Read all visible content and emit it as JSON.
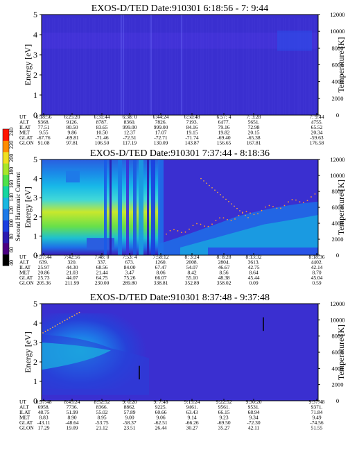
{
  "colorbar": {
    "label": "Second Harmonic Current",
    "ticks": [
      "40",
      "60",
      "80",
      "100",
      "120",
      "140",
      "160",
      "180",
      "200",
      "220",
      "240"
    ],
    "colors": [
      "#000000",
      "#4b0082",
      "#2a1bb0",
      "#1a3fe0",
      "#1e7ae8",
      "#19b7e0",
      "#16d6a0",
      "#4fe24a",
      "#a8e62a",
      "#f0e020",
      "#ff8c00",
      "#ff1500"
    ]
  },
  "row_labels": [
    "UT",
    "ALT",
    "ILAT",
    "MLT",
    "GLAT",
    "GLON"
  ],
  "chart_data": [
    {
      "type": "heatmap",
      "title": "EXOS-D/TED   Date:910301   6:18:56 - 7: 9:44",
      "ylabel": "Energy [eV]",
      "y2label": "Temperature [K]",
      "ylim": [
        0,
        5
      ],
      "y2lim": [
        0,
        12000
      ],
      "yticks": [
        "0",
        "1",
        "2",
        "3",
        "4",
        "5"
      ],
      "y2ticks": [
        "0",
        "2000",
        "4000",
        "6000",
        "8000",
        "10000",
        "12000"
      ],
      "background": "#3a2fd0",
      "columns": [
        {
          "UT": "6:18:56",
          "ALT": "9368.",
          "ILAT": "77.51",
          "MLT": "9.55",
          "GLAT": "-67.76",
          "GLON": "91.08"
        },
        {
          "UT": "6:25:20",
          "ALT": "9126.",
          "ILAT": "80.50",
          "MLT": "9.86",
          "GLAT": "-69.81",
          "GLON": "97.81"
        },
        {
          "UT": "6:31:44",
          "ALT": "8787.",
          "ILAT": "83.65",
          "MLT": "10.50",
          "GLAT": "-71.46",
          "GLON": "106.50"
        },
        {
          "UT": "6:38: 0",
          "ALT": "8360.",
          "ILAT": "999.00",
          "MLT": "12.37",
          "GLAT": "-72.51",
          "GLON": "117.19"
        },
        {
          "UT": "6:44:24",
          "ALT": "7826.",
          "ILAT": "999.00",
          "MLT": "17.07",
          "GLAT": "-72.71",
          "GLON": "130.09"
        },
        {
          "UT": "6:50:48",
          "ALT": "7193.",
          "ILAT": "84.16",
          "MLT": "19.15",
          "GLAT": "-71.74",
          "GLON": "143.87"
        },
        {
          "UT": "6:57: 4",
          "ALT": "6477.",
          "ILAT": "79.16",
          "MLT": "19.82",
          "GLAT": "-69.40",
          "GLON": "156.65"
        },
        {
          "UT": "7: 3:28",
          "ALT": "5651.",
          "ILAT": "72.98",
          "MLT": "20.15",
          "GLAT": "-65.38",
          "GLON": "167.81"
        },
        {
          "UT": "7: 9:44",
          "ALT": "4755.",
          "ILAT": "65.52",
          "MLT": "20.34",
          "GLAT": "-59.63",
          "GLON": "176.58"
        }
      ]
    },
    {
      "type": "heatmap",
      "title": "EXOS-D/TED   Date:910301   7:37:44 - 8:18:36",
      "ylabel": "Energy [eV]",
      "y2label": "Temperature [K]",
      "ylim": [
        0,
        5
      ],
      "y2lim": [
        0,
        12000
      ],
      "yticks": [
        "0",
        "1",
        "2",
        "3",
        "4",
        "5"
      ],
      "y2ticks": [
        "0",
        "2000",
        "4000",
        "6000",
        "8000",
        "10000",
        "12000"
      ],
      "background": "#3a2fd0",
      "columns": [
        {
          "UT": "7:37:44",
          "ALT": "639.",
          "ILAT": "25.97",
          "MLT": "20.86",
          "GLAT": "25.73",
          "GLON": "205.36"
        },
        {
          "UT": "7:42:56",
          "ALT": "320.",
          "ILAT": "44.30",
          "MLT": "21.03",
          "GLAT": "44.07",
          "GLON": "211.99"
        },
        {
          "UT": "7:48: 0",
          "ALT": "337.",
          "ILAT": "68.56",
          "MLT": "21.44",
          "GLAT": "64.75",
          "GLON": "230.00"
        },
        {
          "UT": "7:53: 4",
          "ALT": "673.",
          "ILAT": "84.00",
          "MLT": "3.47",
          "GLAT": "75.26",
          "GLON": "289.80"
        },
        {
          "UT": "7:58:12",
          "ALT": "1260.",
          "ILAT": "67.47",
          "MLT": "8.06",
          "GLAT": "66.07",
          "GLON": "338.81"
        },
        {
          "UT": "8: 3:24",
          "ALT": "2008.",
          "ILAT": "54.07",
          "MLT": "8.42",
          "GLAT": "55.10",
          "GLON": "352.89"
        },
        {
          "UT": "8: 8:28",
          "ALT": "2804.",
          "ILAT": "46.67",
          "MLT": "8.56",
          "GLAT": "48.38",
          "GLON": "358.02"
        },
        {
          "UT": "8:13:32",
          "ALT": "3613.",
          "ILAT": "42.75",
          "MLT": "8.64",
          "GLAT": "45.44",
          "GLON": "0.09"
        },
        {
          "UT": "8:18:36",
          "ALT": "4402.",
          "ILAT": "42.14",
          "MLT": "8.70",
          "GLAT": "45.04",
          "GLON": "0.59"
        }
      ]
    },
    {
      "type": "heatmap",
      "title": "EXOS-D/TED   Date:910301   8:37:48 - 9:37:48",
      "ylabel": "Energy [eV]",
      "y2label": "Temperature [K]",
      "ylim": [
        0,
        5
      ],
      "y2lim": [
        0,
        12000
      ],
      "yticks": [
        "0",
        "1",
        "2",
        "3",
        "4",
        "5"
      ],
      "y2ticks": [
        "0",
        "2000",
        "4000",
        "6000",
        "8000",
        "10000",
        "12000"
      ],
      "background": "#3a2fd0",
      "columns": [
        {
          "UT": "8:37:48",
          "ALT": "6958.",
          "ILAT": "48.75",
          "MLT": "8.83",
          "GLAT": "-43.11",
          "GLON": "17.29"
        },
        {
          "UT": "8:45:24",
          "ALT": "7736.",
          "ILAT": "51.99",
          "MLT": "8.90",
          "GLAT": "-48.64",
          "GLON": "19.09"
        },
        {
          "UT": "8:52:52",
          "ALT": "8366.",
          "ILAT": "55.02",
          "MLT": "8.95",
          "GLAT": "-53.75",
          "GLON": "21.12"
        },
        {
          "UT": "9: 0:20",
          "ALT": "8862.",
          "ILAT": "57.89",
          "MLT": "9.00",
          "GLAT": "-58.37",
          "GLON": "23.51"
        },
        {
          "UT": "9: 7:48",
          "ALT": "9225.",
          "ILAT": "60.66",
          "MLT": "9.06",
          "GLAT": "-62.51",
          "GLON": "26.44"
        },
        {
          "UT": "9:15:24",
          "ALT": "9461.",
          "ILAT": "63.43",
          "MLT": "9.14",
          "GLAT": "-66.26",
          "GLON": "30.27"
        },
        {
          "UT": "9:22:52",
          "ALT": "9561.",
          "ILAT": "66.15",
          "MLT": "9.23",
          "GLAT": "-69.50",
          "GLON": "35.27"
        },
        {
          "UT": "9:30:20",
          "ALT": "9531.",
          "ILAT": "68.94",
          "MLT": "9.34",
          "GLAT": "-72.30",
          "GLON": "42.11"
        },
        {
          "UT": "9:37:48",
          "ALT": "9371.",
          "ILAT": "71.84",
          "MLT": "9.49",
          "GLAT": "-74.56",
          "GLON": "51.55"
        }
      ]
    }
  ]
}
